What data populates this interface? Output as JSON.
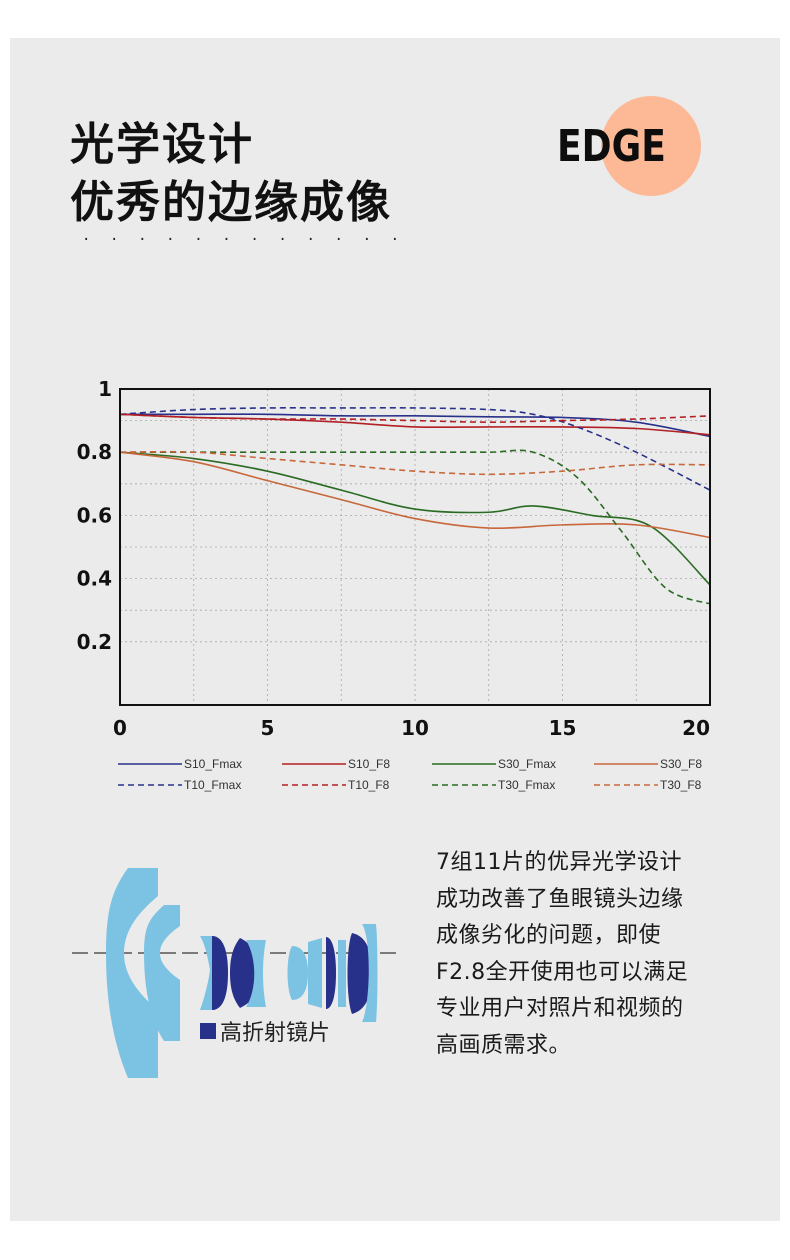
{
  "header": {
    "title_line1": "光学设计",
    "title_line2": "优秀的边缘成像",
    "dots": "· · · · · · · · · · · · · · · · · · · · · · · · · · · · · ·",
    "badge": "EDGE",
    "badge_color": "#fdb996"
  },
  "chart_data": {
    "type": "line",
    "xlim": [
      0,
      20
    ],
    "ylim": [
      0,
      1
    ],
    "xticks": [
      0,
      5,
      10,
      15,
      20
    ],
    "xtick_labels": [
      "0",
      "5",
      "10",
      "15",
      "20"
    ],
    "yticks": [
      0.2,
      0.4,
      0.6,
      0.8,
      1
    ],
    "ytick_labels": [
      "0.2",
      "0.4",
      "0.6",
      "0.8",
      "1"
    ],
    "grid": true,
    "legend_position": "bottom",
    "series": [
      {
        "name": "S10_Fmax",
        "color": "#283189",
        "dash": false,
        "x": [
          0,
          2.5,
          5,
          7.5,
          10,
          12.5,
          15,
          17.5,
          20
        ],
        "y": [
          0.92,
          0.92,
          0.92,
          0.915,
          0.915,
          0.912,
          0.91,
          0.895,
          0.85
        ]
      },
      {
        "name": "S10_F8",
        "color": "#b21f24",
        "dash": false,
        "x": [
          0,
          2.5,
          5,
          7.5,
          10,
          12.5,
          15,
          17.5,
          20
        ],
        "y": [
          0.92,
          0.91,
          0.905,
          0.895,
          0.88,
          0.88,
          0.88,
          0.875,
          0.855
        ]
      },
      {
        "name": "S30_Fmax",
        "color": "#2a6b22",
        "dash": false,
        "x": [
          0,
          2.5,
          5,
          7.5,
          10,
          12.5,
          14,
          16,
          18,
          20
        ],
        "y": [
          0.8,
          0.78,
          0.74,
          0.68,
          0.62,
          0.61,
          0.63,
          0.6,
          0.565,
          0.38
        ]
      },
      {
        "name": "S30_F8",
        "color": "#c8673a",
        "dash": false,
        "x": [
          0,
          2.5,
          5,
          7.5,
          10,
          12.5,
          15,
          17.5,
          20
        ],
        "y": [
          0.8,
          0.77,
          0.71,
          0.65,
          0.59,
          0.56,
          0.57,
          0.57,
          0.53
        ]
      },
      {
        "name": "T10_Fmax",
        "color": "#283189",
        "dash": true,
        "x": [
          0,
          2.5,
          5,
          7.5,
          10,
          12.5,
          14,
          15.5,
          17.5,
          20
        ],
        "y": [
          0.92,
          0.935,
          0.94,
          0.94,
          0.94,
          0.935,
          0.92,
          0.88,
          0.8,
          0.68
        ]
      },
      {
        "name": "T10_F8",
        "color": "#b21f24",
        "dash": true,
        "x": [
          0,
          2.5,
          5,
          7.5,
          10,
          12.5,
          15,
          17.5,
          20
        ],
        "y": [
          0.92,
          0.91,
          0.905,
          0.905,
          0.9,
          0.895,
          0.9,
          0.905,
          0.915
        ]
      },
      {
        "name": "T30_Fmax",
        "color": "#2a6b22",
        "dash": true,
        "x": [
          0,
          2.5,
          5,
          7.5,
          10,
          12.5,
          14,
          15.5,
          17,
          18.5,
          20
        ],
        "y": [
          0.8,
          0.8,
          0.8,
          0.8,
          0.8,
          0.8,
          0.8,
          0.72,
          0.55,
          0.37,
          0.32
        ]
      },
      {
        "name": "T30_F8",
        "color": "#c8673a",
        "dash": true,
        "x": [
          0,
          2.5,
          5,
          7.5,
          10,
          12.5,
          15,
          17.5,
          20
        ],
        "y": [
          0.8,
          0.8,
          0.78,
          0.76,
          0.74,
          0.73,
          0.74,
          0.76,
          0.76
        ]
      }
    ]
  },
  "lens": {
    "legend_label": "高折射镜片",
    "high_index_color": "#283189",
    "element_color": "#7cc3e3"
  },
  "description": {
    "lines": [
      "7组11片的优异光学设计",
      "成功改善了鱼眼镜头边缘",
      "成像劣化的问题，即使",
      "F2.8全开使用也可以满足",
      "专业用户对照片和视频的",
      "高画质需求。"
    ]
  }
}
